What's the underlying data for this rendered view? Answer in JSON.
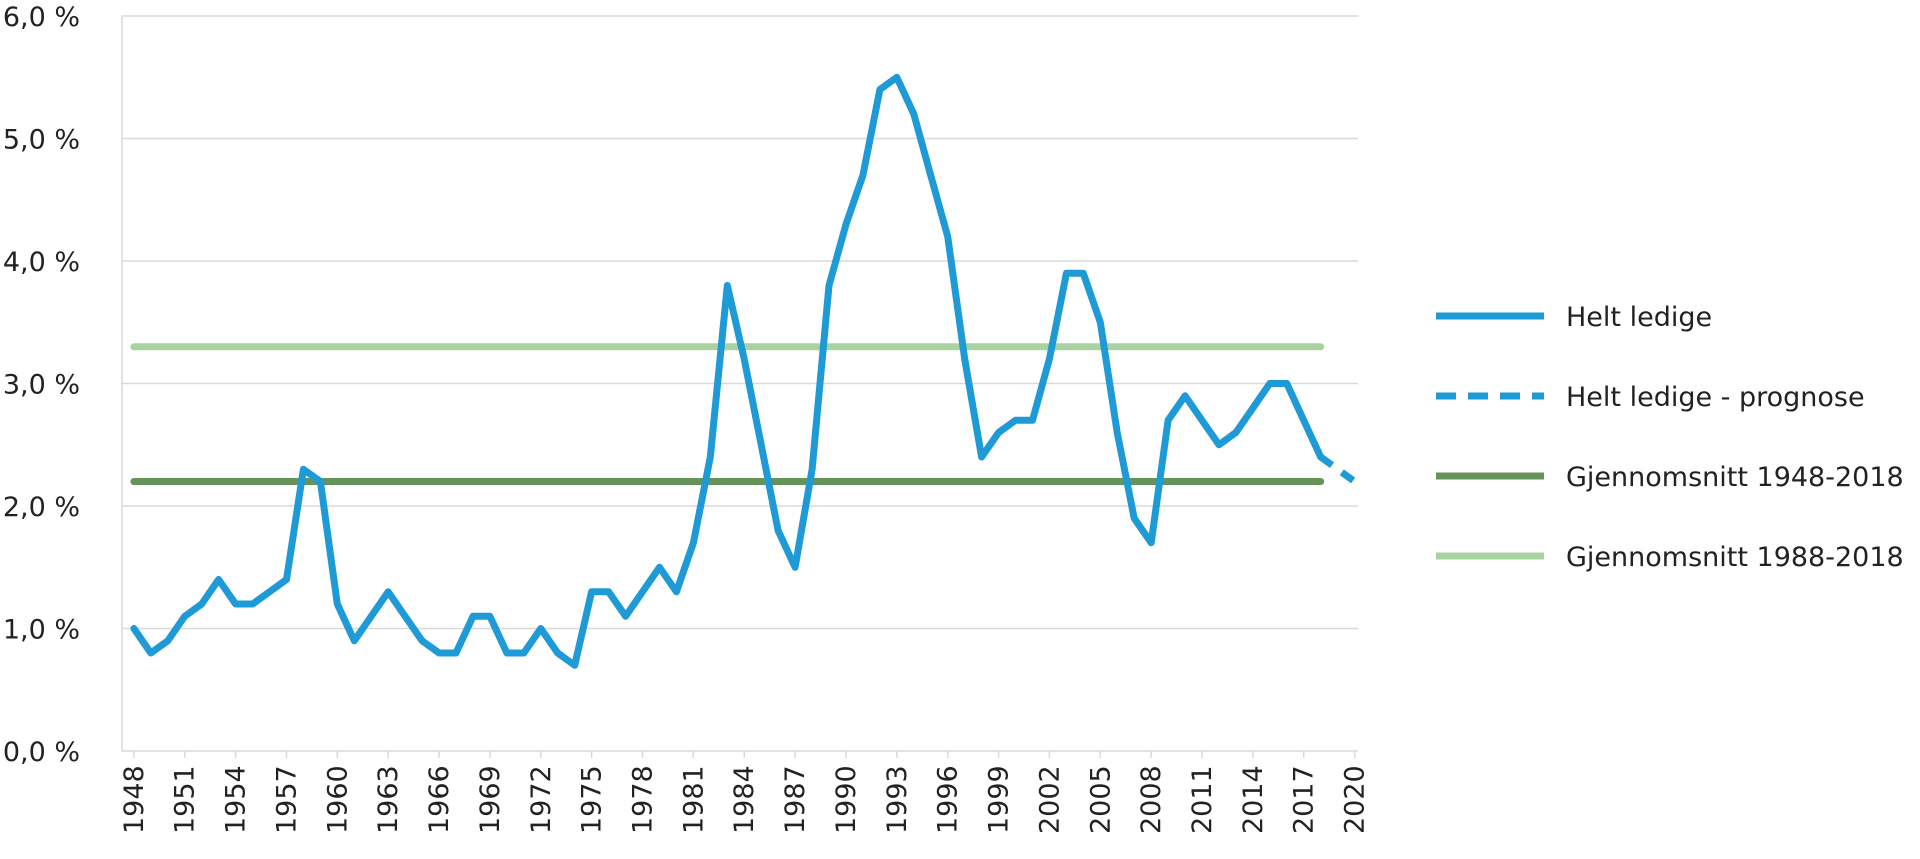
{
  "chart_data": {
    "type": "line",
    "title": "",
    "xlabel": "",
    "ylabel": "",
    "ylim": [
      0,
      6
    ],
    "y_ticks": [
      "0,0 %",
      "1,0 %",
      "2,0 %",
      "3,0 %",
      "4,0 %",
      "5,0 %",
      "6,0 %"
    ],
    "x_tick_labels": [
      "1948",
      "1951",
      "1954",
      "1957",
      "1960",
      "1963",
      "1966",
      "1969",
      "1972",
      "1975",
      "1978",
      "1981",
      "1984",
      "1987",
      "1990",
      "1993",
      "1996",
      "1999",
      "2002",
      "2005",
      "2008",
      "2011",
      "2014",
      "2017",
      "2020"
    ],
    "grid": true,
    "legend_position": "right",
    "series": [
      {
        "name": "Helt ledige",
        "color": "#1e9bd7",
        "style": "solid",
        "x": [
          1948,
          1949,
          1950,
          1951,
          1952,
          1953,
          1954,
          1955,
          1956,
          1957,
          1958,
          1959,
          1960,
          1961,
          1962,
          1963,
          1964,
          1965,
          1966,
          1967,
          1968,
          1969,
          1970,
          1971,
          1972,
          1973,
          1974,
          1975,
          1976,
          1977,
          1978,
          1979,
          1980,
          1981,
          1982,
          1983,
          1984,
          1985,
          1986,
          1987,
          1988,
          1989,
          1990,
          1991,
          1992,
          1993,
          1994,
          1995,
          1996,
          1997,
          1998,
          1999,
          2000,
          2001,
          2002,
          2003,
          2004,
          2005,
          2006,
          2007,
          2008,
          2009,
          2010,
          2011,
          2012,
          2013,
          2014,
          2015,
          2016,
          2017,
          2018
        ],
        "values": [
          1.0,
          0.8,
          0.9,
          1.1,
          1.2,
          1.4,
          1.2,
          1.2,
          1.3,
          1.4,
          2.3,
          2.2,
          1.2,
          0.9,
          1.1,
          1.3,
          1.1,
          0.9,
          0.8,
          0.8,
          1.1,
          1.1,
          0.8,
          0.8,
          1.0,
          0.8,
          0.7,
          1.3,
          1.3,
          1.1,
          1.3,
          1.5,
          1.3,
          1.7,
          2.4,
          3.8,
          3.2,
          2.5,
          1.8,
          1.5,
          2.3,
          3.8,
          4.3,
          4.7,
          5.4,
          5.5,
          5.2,
          4.7,
          4.2,
          3.2,
          2.4,
          2.6,
          2.7,
          2.7,
          3.2,
          3.9,
          3.9,
          3.5,
          2.6,
          1.9,
          1.7,
          2.7,
          2.9,
          2.7,
          2.5,
          2.6,
          2.8,
          3.0,
          3.0,
          2.7,
          2.4
        ]
      },
      {
        "name": "Helt ledige - prognose",
        "color": "#1e9bd7",
        "style": "dashed",
        "x": [
          2018,
          2019,
          2020
        ],
        "values": [
          2.4,
          2.3,
          2.2
        ]
      },
      {
        "name": "Gjennomsnitt 1948-2018",
        "color": "#66935a",
        "style": "solid",
        "x": [
          1948,
          2018
        ],
        "values": [
          2.2,
          2.2
        ]
      },
      {
        "name": "Gjennomsnitt 1988-2018",
        "color": "#a8d3a0",
        "style": "solid",
        "x": [
          1948,
          2018
        ],
        "values": [
          3.3,
          3.3
        ]
      }
    ]
  }
}
